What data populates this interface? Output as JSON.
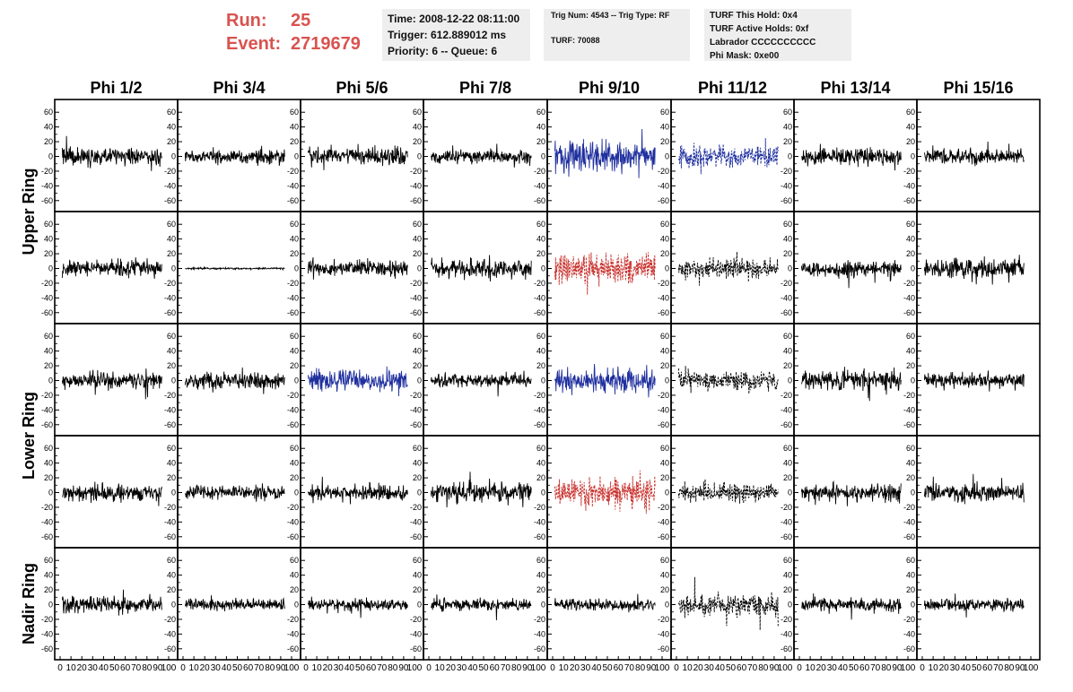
{
  "header": {
    "run_label": "Run:",
    "run_value": "25",
    "event_label": "Event:",
    "event_value": "2719679",
    "time": "Time: 2008-12-22 08:11:00",
    "trigger": "Trigger: 612.889012 ms",
    "priority": "Priority: 6 -- Queue: 6",
    "trig_info": "Trig Num: 4543 -- Trig Type: RF",
    "turf": "TURF: 70088",
    "turf_this_hold": "TURF This Hold: 0x4",
    "turf_active_holds": "TURF Active Holds: 0xf",
    "labrador": "Labrador CCCCCCCCCC",
    "phi_mask": "Phi Mask: 0xe00"
  },
  "chart_data": {
    "type": "line",
    "columns": [
      "Phi 1/2",
      "Phi 3/4",
      "Phi 5/6",
      "Phi 7/8",
      "Phi 9/10",
      "Phi 11/12",
      "Phi 13/14",
      "Phi 15/16"
    ],
    "rows": [
      "Upper Ring",
      "Lower Ring",
      "Nadir Ring"
    ],
    "xlim": [
      0,
      100
    ],
    "ylim": [
      -70,
      70
    ],
    "yticks": [
      60,
      40,
      20,
      0,
      -20,
      -40,
      -60
    ],
    "xticks": [
      0,
      10,
      20,
      30,
      40,
      50,
      60,
      70,
      80,
      90,
      100
    ],
    "colors": {
      "black": "#000000",
      "blue": "#1f2f9e",
      "red": "#c8302c"
    },
    "panels": [
      [
        {
          "color": "black",
          "style": "solid",
          "amp": 14,
          "seed": 1
        },
        {
          "color": "black",
          "style": "solid",
          "amp": 12,
          "seed": 2
        },
        {
          "color": "black",
          "style": "solid",
          "amp": 14,
          "seed": 3
        },
        {
          "color": "black",
          "style": "solid",
          "amp": 11,
          "seed": 4
        },
        {
          "color": "blue",
          "style": "solid",
          "amp": 26,
          "seed": 5
        },
        {
          "color": "blue",
          "style": "dashed",
          "amp": 18,
          "seed": 6
        },
        {
          "color": "black",
          "style": "solid",
          "amp": 15,
          "seed": 7
        },
        {
          "color": "black",
          "style": "solid",
          "amp": 13,
          "seed": 8
        }
      ],
      [
        {
          "color": "black",
          "style": "solid",
          "amp": 14,
          "seed": 9
        },
        {
          "color": "black",
          "style": "solid",
          "amp": 1.5,
          "seed": 10
        },
        {
          "color": "black",
          "style": "solid",
          "amp": 13,
          "seed": 11
        },
        {
          "color": "black",
          "style": "solid",
          "amp": 15,
          "seed": 12
        },
        {
          "color": "red",
          "style": "dashed",
          "amp": 26,
          "seed": 13
        },
        {
          "color": "black",
          "style": "dashed",
          "amp": 17,
          "seed": 14
        },
        {
          "color": "black",
          "style": "solid",
          "amp": 14,
          "seed": 15
        },
        {
          "color": "black",
          "style": "solid",
          "amp": 16,
          "seed": 16
        }
      ],
      [
        {
          "color": "black",
          "style": "solid",
          "amp": 14,
          "seed": 17
        },
        {
          "color": "black",
          "style": "solid",
          "amp": 13,
          "seed": 18
        },
        {
          "color": "blue",
          "style": "solid",
          "amp": 20,
          "seed": 19
        },
        {
          "color": "black",
          "style": "solid",
          "amp": 11,
          "seed": 20
        },
        {
          "color": "blue",
          "style": "solid",
          "amp": 20,
          "seed": 21
        },
        {
          "color": "black",
          "style": "dashed",
          "amp": 17,
          "seed": 22
        },
        {
          "color": "black",
          "style": "solid",
          "amp": 16,
          "seed": 23
        },
        {
          "color": "black",
          "style": "solid",
          "amp": 12,
          "seed": 24
        }
      ],
      [
        {
          "color": "black",
          "style": "solid",
          "amp": 14,
          "seed": 25
        },
        {
          "color": "black",
          "style": "solid",
          "amp": 11,
          "seed": 26
        },
        {
          "color": "black",
          "style": "solid",
          "amp": 13,
          "seed": 27
        },
        {
          "color": "black",
          "style": "solid",
          "amp": 16,
          "seed": 28
        },
        {
          "color": "red",
          "style": "dashed",
          "amp": 24,
          "seed": 29
        },
        {
          "color": "black",
          "style": "dashed",
          "amp": 14,
          "seed": 30
        },
        {
          "color": "black",
          "style": "solid",
          "amp": 14,
          "seed": 31
        },
        {
          "color": "black",
          "style": "solid",
          "amp": 14,
          "seed": 32
        }
      ],
      [
        {
          "color": "black",
          "style": "solid",
          "amp": 13,
          "seed": 33
        },
        {
          "color": "black",
          "style": "solid",
          "amp": 9,
          "seed": 34
        },
        {
          "color": "black",
          "style": "solid",
          "amp": 10,
          "seed": 35
        },
        {
          "color": "black",
          "style": "solid",
          "amp": 10,
          "seed": 36
        },
        {
          "color": "black",
          "style": "solid",
          "amp": 10,
          "seed": 37
        },
        {
          "color": "black",
          "style": "dashed",
          "amp": 19,
          "seed": 38
        },
        {
          "color": "black",
          "style": "solid",
          "amp": 11,
          "seed": 39
        },
        {
          "color": "black",
          "style": "solid",
          "amp": 11,
          "seed": 40
        }
      ]
    ]
  }
}
